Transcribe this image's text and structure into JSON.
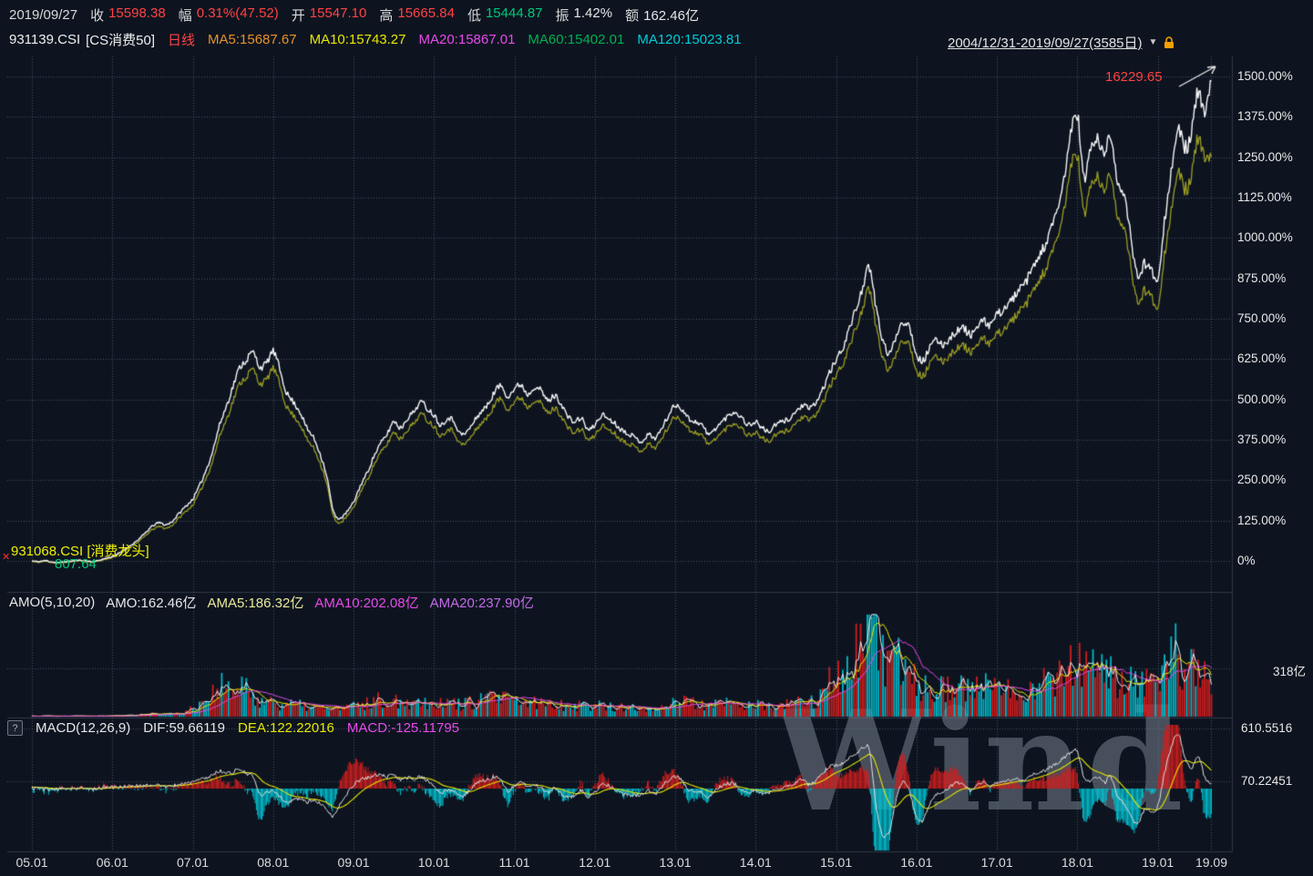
{
  "header": {
    "date": "2019/09/27",
    "fields": [
      {
        "label": "收",
        "value": "15598.38",
        "color": "#ff4242"
      },
      {
        "label": "幅",
        "value": "0.31%(47.52)",
        "color": "#ff4242"
      },
      {
        "label": "开",
        "value": "15547.10",
        "color": "#ff4242"
      },
      {
        "label": "高",
        "value": "15665.84",
        "color": "#ff4242"
      },
      {
        "label": "低",
        "value": "15444.87",
        "color": "#00c878"
      },
      {
        "label": "振",
        "value": "1.42%",
        "color": "#e6e6e6"
      },
      {
        "label": "额",
        "value": "162.46亿",
        "color": "#e6e6e6"
      }
    ]
  },
  "instrument": {
    "code": "931139.CSI",
    "name": "[CS消费50]",
    "period": "日线",
    "period_color": "#ff4242",
    "ma": [
      {
        "label": "MA5:15687.67",
        "color": "#e8922a"
      },
      {
        "label": "MA10:15743.27",
        "color": "#e8e800"
      },
      {
        "label": "MA20:15867.01",
        "color": "#e84ae8"
      },
      {
        "label": "MA60:15402.01",
        "color": "#00b050"
      },
      {
        "label": "MA120:15023.81",
        "color": "#00cdd8"
      }
    ],
    "range": "2004/12/31-2019/09/27(3585日)",
    "caret": "▼"
  },
  "amo_header": {
    "items": [
      {
        "label": "AMO(5,10,20)",
        "color": "#e6e6e6"
      },
      {
        "label": "AMO:162.46亿",
        "color": "#e6e6e6"
      },
      {
        "label": "AMA5:186.32亿",
        "color": "#eaea9a"
      },
      {
        "label": "AMA10:202.08亿",
        "color": "#e84ae8"
      },
      {
        "label": "AMA20:237.90亿",
        "color": "#c36ae8"
      }
    ]
  },
  "macd_header": {
    "help": "?",
    "items": [
      {
        "label": "MACD(12,26,9)",
        "color": "#e6e6e6"
      },
      {
        "label": "DIF:59.66119",
        "color": "#e6e6e6"
      },
      {
        "label": "DEA:122.22016",
        "color": "#e8e800"
      },
      {
        "label": "MACD:-125.11795",
        "color": "#e84ae8"
      }
    ]
  },
  "overlays": {
    "high_label": {
      "text": "16229.65",
      "color": "#ff4242"
    },
    "series2_label": {
      "text": "931068.CSI [消费龙头]",
      "color": "#f0f000"
    },
    "series2_value": {
      "text": "807.64",
      "color": "#00c878"
    },
    "marker": {
      "text": "✕",
      "color": "#ff3030"
    }
  },
  "watermark": "Wind",
  "chart_data": {
    "type": "line",
    "title": "931139.CSI CS消费50 vs 931068.CSI 消费龙头 — cumulative % change, daily, 2004/12/31-2019/09/27 (3585 days)",
    "x_unit": "month",
    "x_start": "2005-01",
    "x_end": "2019-09",
    "x_tick_labels": [
      "05.01",
      "06.01",
      "07.01",
      "08.01",
      "09.01",
      "10.01",
      "11.01",
      "12.01",
      "13.01",
      "14.01",
      "15.01",
      "16.01",
      "17.01",
      "18.01",
      "19.01",
      "19.09"
    ],
    "x_tick_months": [
      0,
      12,
      24,
      36,
      48,
      60,
      72,
      84,
      96,
      108,
      120,
      132,
      144,
      156,
      168,
      176
    ],
    "y_axis": {
      "side": "right",
      "min": 0,
      "max": 1500,
      "grid": true,
      "tick_labels": [
        "1500.00%",
        "1375.00%",
        "1250.00%",
        "1125.00%",
        "1000.00%",
        "875.00%",
        "750.00%",
        "625.00%",
        "500.00%",
        "375.00%",
        "250.00%",
        "125.00%",
        "0%"
      ]
    },
    "series": [
      {
        "name": "931139.CSI CS消费50",
        "color": "#f5f5f5",
        "last_value_label": "16229.65",
        "values": [
          0,
          -2,
          1,
          -3,
          -5,
          -2,
          0,
          2,
          1,
          -2,
          2,
          8,
          14,
          24,
          38,
          52,
          68,
          88,
          108,
          118,
          112,
          124,
          148,
          170,
          192,
          232,
          282,
          342,
          420,
          478,
          540,
          598,
          622,
          645,
          602,
          612,
          648,
          592,
          522,
          492,
          462,
          412,
          382,
          332,
          262,
          152,
          132,
          152,
          182,
          232,
          272,
          322,
          362,
          392,
          432,
          412,
          442,
          462,
          492,
          472,
          452,
          422,
          442,
          432,
          392,
          402,
          432,
          462,
          482,
          522,
          542,
          512,
          532,
          546,
          516,
          541,
          526,
          496,
          511,
          486,
          446,
          431,
          441,
          406,
          421,
          451,
          441,
          426,
          406,
          396,
          381,
          371,
          391,
          381,
          411,
          451,
          481,
          471,
          441,
          431,
          421,
          391,
          411,
          431,
          451,
          461,
          441,
          421,
          431,
          411,
          401,
          421,
          431,
          441,
          461,
          481,
          471,
          491,
          531,
          581,
          621,
          661,
          721,
          781,
          851,
          901,
          781,
          681,
          641,
          701,
          741,
          721,
          641,
          621,
          661,
          681,
          671,
          691,
          711,
          721,
          701,
          721,
          741,
          731,
          761,
          781,
          801,
          831,
          851,
          891,
          931,
          971,
          1021,
          1081,
          1181,
          1321,
          1381,
          1181,
          1281,
          1301,
          1261,
          1311,
          1181,
          1121,
          1001,
          881,
          921,
          901,
          881,
          1051,
          1201,
          1331,
          1281,
          1321,
          1451,
          1381,
          1491
        ]
      },
      {
        "name": "931068.CSI 消费龙头",
        "color": "#9a9b22",
        "start_value_label": "807.64",
        "values": [
          -2,
          -4,
          -1,
          -5,
          -7,
          -4,
          -2,
          0,
          -1,
          -4,
          0,
          5,
          11,
          20,
          33,
          46,
          61,
          79,
          97,
          106,
          101,
          112,
          134,
          154,
          174,
          211,
          257,
          312,
          384,
          437,
          494,
          548,
          570,
          592,
          552,
          561,
          595,
          544,
          479,
          451,
          424,
          378,
          350,
          304,
          240,
          138,
          119,
          138,
          166,
          213,
          250,
          296,
          333,
          361,
          398,
          379,
          407,
          426,
          454,
          436,
          417,
          389,
          408,
          398,
          361,
          370,
          398,
          426,
          445,
          482,
          501,
          473,
          491,
          505,
          477,
          500,
          486,
          458,
          472,
          449,
          412,
          398,
          407,
          375,
          389,
          417,
          408,
          394,
          375,
          366,
          352,
          343,
          361,
          352,
          380,
          417,
          445,
          435,
          408,
          398,
          389,
          361,
          380,
          398,
          417,
          426,
          408,
          389,
          398,
          380,
          371,
          389,
          398,
          408,
          426,
          445,
          435,
          454,
          491,
          537,
          574,
          611,
          666,
          722,
          787,
          833,
          722,
          629,
          592,
          648,
          685,
          666,
          592,
          574,
          611,
          629,
          620,
          639,
          657,
          666,
          648,
          666,
          685,
          675,
          700,
          718,
          737,
          764,
          782,
          819,
          856,
          893,
          939,
          994,
          1086,
          1215,
          1256,
          1074,
          1165,
          1183,
          1147,
          1192,
          1074,
          1019,
          910,
          801,
          837,
          819,
          793,
          946,
          1081,
          1198,
          1152,
          1189,
          1306,
          1242,
          1256
        ]
      }
    ],
    "volume": {
      "title": "AMO",
      "unit": "亿",
      "tick_label": "318亿",
      "tick_value": 318,
      "max": 660,
      "up_color": "#cf1f1f",
      "down_color": "#00b8c8",
      "values": [
        4,
        4,
        5,
        4,
        4,
        4,
        4,
        5,
        4,
        4,
        5,
        6,
        8,
        9,
        10,
        12,
        14,
        16,
        20,
        18,
        17,
        20,
        26,
        32,
        60,
        90,
        120,
        160,
        200,
        180,
        150,
        190,
        170,
        140,
        120,
        110,
        100,
        90,
        85,
        80,
        75,
        70,
        65,
        60,
        55,
        60,
        55,
        60,
        70,
        80,
        90,
        100,
        110,
        105,
        115,
        110,
        105,
        100,
        110,
        105,
        100,
        90,
        95,
        90,
        85,
        90,
        95,
        110,
        120,
        130,
        120,
        110,
        100,
        95,
        90,
        95,
        90,
        85,
        90,
        85,
        80,
        75,
        80,
        75,
        70,
        80,
        75,
        70,
        65,
        60,
        55,
        50,
        60,
        55,
        70,
        90,
        110,
        100,
        90,
        85,
        80,
        70,
        80,
        85,
        90,
        85,
        80,
        75,
        80,
        70,
        65,
        70,
        75,
        80,
        90,
        110,
        100,
        120,
        160,
        220,
        260,
        300,
        360,
        420,
        520,
        650,
        560,
        380,
        300,
        340,
        360,
        320,
        240,
        200,
        220,
        210,
        190,
        200,
        210,
        200,
        180,
        190,
        200,
        190,
        180,
        170,
        180,
        200,
        190,
        210,
        230,
        240,
        260,
        280,
        320,
        360,
        420,
        300,
        320,
        300,
        280,
        300,
        260,
        240,
        220,
        200,
        240,
        220,
        200,
        280,
        420,
        460,
        320,
        300,
        380,
        340,
        200
      ]
    },
    "macd": {
      "tick_labels": [
        "610.5516",
        "70.22451"
      ],
      "min": -650,
      "max": 610,
      "up_color": "#cf1f1f",
      "down_color": "#00c0d0",
      "dif_color": "#e0e0e0",
      "dea_color": "#e8e800",
      "dif": [
        5,
        8,
        -5,
        -8,
        -6,
        2,
        4,
        5,
        -3,
        -5,
        6,
        12,
        15,
        20,
        22,
        25,
        28,
        35,
        40,
        30,
        18,
        25,
        45,
        55,
        70,
        90,
        110,
        140,
        180,
        160,
        170,
        200,
        150,
        120,
        -60,
        -40,
        -20,
        -80,
        -140,
        -120,
        -100,
        -140,
        -120,
        -160,
        -220,
        -280,
        -160,
        -60,
        40,
        90,
        110,
        130,
        140,
        120,
        140,
        90,
        110,
        100,
        120,
        80,
        20,
        -40,
        -20,
        -30,
        -80,
        -40,
        30,
        80,
        90,
        120,
        90,
        -30,
        30,
        60,
        20,
        40,
        10,
        -40,
        10,
        -50,
        -90,
        -70,
        -20,
        -80,
        -40,
        40,
        30,
        -10,
        -50,
        -60,
        -70,
        -60,
        -20,
        -50,
        20,
        90,
        120,
        80,
        -20,
        -30,
        -40,
        -80,
        -10,
        30,
        50,
        40,
        -20,
        -50,
        -20,
        -50,
        -40,
        -10,
        10,
        30,
        60,
        90,
        40,
        80,
        160,
        220,
        240,
        260,
        320,
        360,
        420,
        380,
        -200,
        -480,
        -420,
        -100,
        80,
        -40,
        -300,
        -320,
        -160,
        -60,
        -40,
        20,
        60,
        50,
        -20,
        30,
        60,
        20,
        60,
        70,
        80,
        100,
        90,
        130,
        160,
        180,
        220,
        260,
        320,
        360,
        380,
        120,
        80,
        120,
        60,
        120,
        -80,
        -160,
        -280,
        -360,
        -220,
        -240,
        -180,
        150,
        420,
        560,
        340,
        200,
        340,
        120,
        60
      ]
    }
  }
}
